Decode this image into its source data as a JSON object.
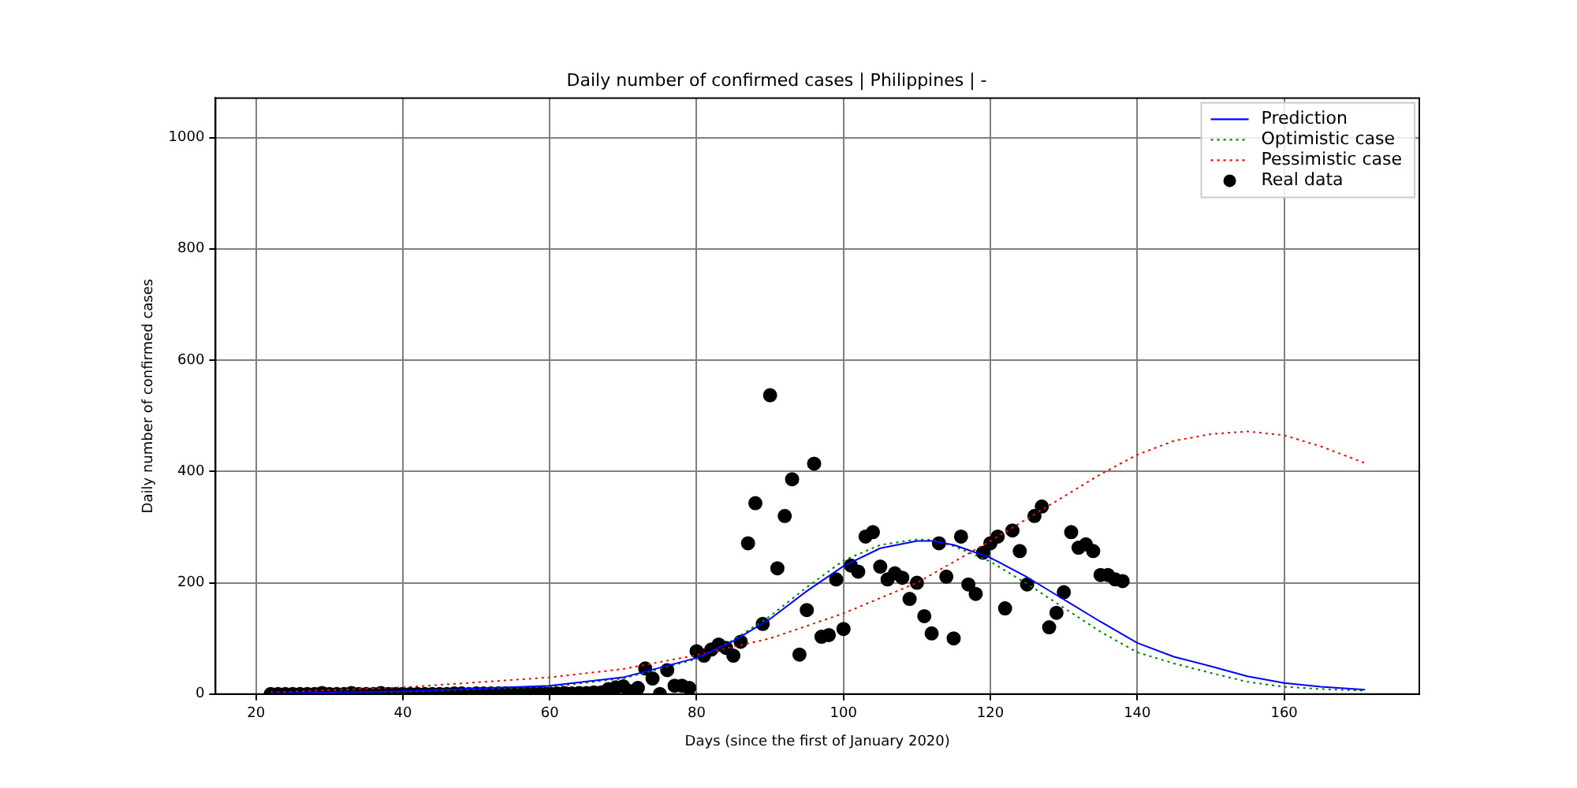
{
  "chart_data": {
    "type": "line",
    "title": "Daily number of confirmed cases | Philippines | -",
    "xlabel": "Days (since the first of January 2020)",
    "ylabel": "Daily number of confirmed cases",
    "xlim": [
      14.5,
      178.4
    ],
    "xticks": [
      20,
      40,
      60,
      80,
      100,
      120,
      140,
      160
    ],
    "ylim": [
      0,
      1071
    ],
    "yticks": [
      0,
      200,
      400,
      600,
      800,
      1000
    ],
    "grid": true,
    "legend": "top right",
    "series": [
      {
        "name": "Prediction",
        "type": "line",
        "color": "#0000ff",
        "line_style": "solid",
        "marker": "none",
        "x": [
          22,
          40,
          60,
          70,
          80,
          85,
          90,
          95,
          100,
          105,
          110,
          112,
          115,
          120,
          125,
          130,
          135,
          140,
          145,
          150,
          155,
          160,
          165,
          171
        ],
        "values": [
          1,
          5,
          15,
          30,
          65,
          95,
          135,
          185,
          230,
          262,
          275,
          275,
          268,
          245,
          210,
          170,
          130,
          92,
          67,
          50,
          32,
          20,
          13,
          8
        ]
      },
      {
        "name": "Optimistic case",
        "type": "line",
        "color": "#008000",
        "line_style": "dotted",
        "marker": "none",
        "x": [
          22,
          40,
          60,
          70,
          80,
          85,
          90,
          95,
          100,
          105,
          110,
          112,
          115,
          120,
          125,
          130,
          135,
          140,
          145,
          150,
          155,
          160,
          165,
          171
        ],
        "values": [
          1,
          4,
          13,
          28,
          63,
          97,
          140,
          192,
          240,
          268,
          278,
          277,
          266,
          238,
          198,
          155,
          112,
          75,
          55,
          38,
          22,
          13,
          9,
          6
        ]
      },
      {
        "name": "Pessimistic case",
        "type": "line",
        "color": "#ff0000",
        "line_style": "dotted",
        "marker": "none",
        "x": [
          22,
          40,
          60,
          70,
          80,
          90,
          100,
          110,
          120,
          125,
          130,
          135,
          140,
          145,
          150,
          155,
          160,
          165,
          171
        ],
        "values": [
          3,
          12,
          30,
          45,
          70,
          100,
          145,
          200,
          275,
          315,
          355,
          395,
          430,
          455,
          467,
          472,
          465,
          445,
          415
        ]
      },
      {
        "name": "Real data",
        "type": "scatter",
        "color": "#000000",
        "marker": "circle",
        "x": [
          22,
          23,
          24,
          25,
          26,
          27,
          28,
          29,
          30,
          31,
          32,
          33,
          34,
          35,
          36,
          37,
          38,
          39,
          40,
          41,
          42,
          43,
          44,
          45,
          46,
          47,
          48,
          49,
          50,
          51,
          52,
          53,
          54,
          55,
          56,
          57,
          58,
          59,
          60,
          61,
          62,
          63,
          64,
          65,
          66,
          67,
          68,
          69,
          70,
          71,
          72,
          73,
          74,
          75,
          76,
          77,
          78,
          79,
          80,
          81,
          82,
          83,
          84,
          85,
          86,
          87,
          88,
          89,
          90,
          91,
          92,
          93,
          94,
          95,
          96,
          97,
          98,
          99,
          100,
          101,
          102,
          103,
          104,
          105,
          106,
          107,
          108,
          109,
          110,
          111,
          112,
          113,
          114,
          115,
          116,
          117,
          118,
          119,
          120,
          121,
          122,
          123,
          124,
          125,
          126,
          127,
          128,
          129,
          130,
          131,
          132,
          133,
          134,
          135,
          136,
          137,
          138
        ],
        "values": [
          0,
          0,
          0,
          0,
          0,
          0,
          0,
          2,
          0,
          0,
          0,
          2,
          0,
          0,
          0,
          2,
          0,
          0,
          0,
          0,
          0,
          0,
          0,
          0,
          0,
          1,
          1,
          0,
          1,
          1,
          1,
          1,
          1,
          0,
          1,
          1,
          1,
          2,
          1,
          1,
          2,
          1,
          2,
          2,
          3,
          3,
          9,
          12,
          14,
          5,
          11,
          46,
          28,
          0,
          43,
          15,
          15,
          11,
          77,
          69,
          80,
          89,
          83,
          69,
          94,
          271,
          343,
          126,
          537,
          226,
          320,
          386,
          71,
          151,
          414,
          103,
          106,
          206,
          117,
          231,
          220,
          283,
          291,
          229,
          206,
          217,
          209,
          171,
          200,
          140,
          109,
          271,
          211,
          100,
          283,
          197,
          180,
          254,
          271,
          283,
          154,
          294,
          257,
          197,
          320,
          337,
          120,
          146,
          183,
          291,
          263,
          269,
          257,
          214,
          214,
          206,
          203
        ]
      }
    ]
  }
}
